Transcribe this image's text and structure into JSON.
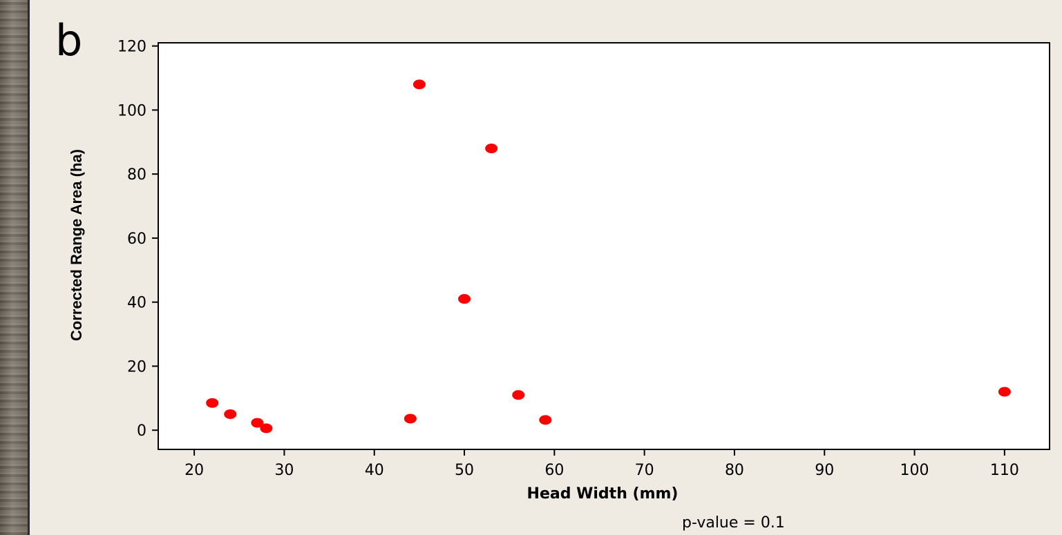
{
  "panel_label": "b",
  "annotation": "p-value = 0.1",
  "chart_data": {
    "type": "scatter",
    "xlabel": "Head Width (mm)",
    "ylabel": "Corrected Range Area (ha)",
    "xlim": [
      16,
      115
    ],
    "ylim": [
      -6,
      121
    ],
    "xticks": [
      20,
      30,
      40,
      50,
      60,
      70,
      80,
      90,
      100,
      110
    ],
    "yticks": [
      0,
      20,
      40,
      60,
      80,
      100,
      120
    ],
    "marker_color": "#ff0000",
    "points": [
      {
        "x": 22,
        "y": 8.5
      },
      {
        "x": 24,
        "y": 5
      },
      {
        "x": 27,
        "y": 2.3
      },
      {
        "x": 28,
        "y": 0.6
      },
      {
        "x": 44,
        "y": 3.6
      },
      {
        "x": 45,
        "y": 108
      },
      {
        "x": 50,
        "y": 41
      },
      {
        "x": 53,
        "y": 88
      },
      {
        "x": 56,
        "y": 11
      },
      {
        "x": 59,
        "y": 3.2
      },
      {
        "x": 110,
        "y": 12
      }
    ]
  }
}
